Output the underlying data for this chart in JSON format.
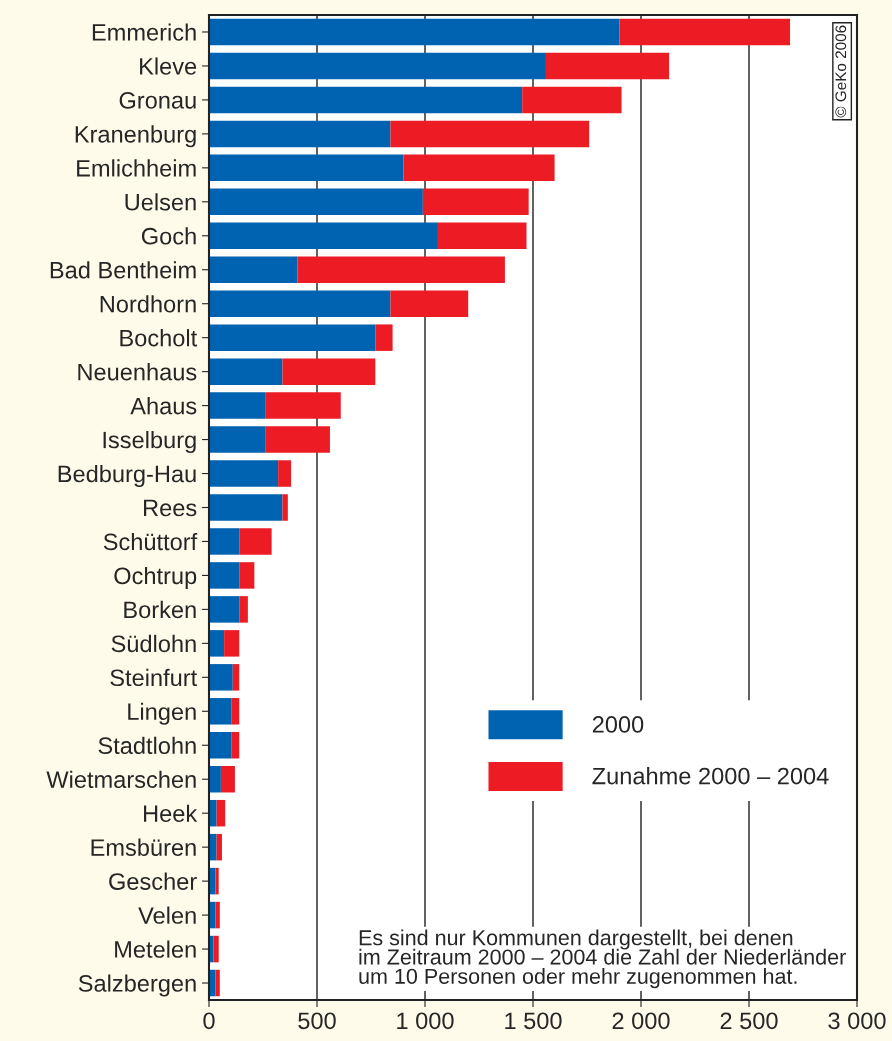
{
  "chart_data": {
    "type": "bar",
    "orientation": "horizontal",
    "stacked": true,
    "categories": [
      "Emmerich",
      "Kleve",
      "Gronau",
      "Kranenburg",
      "Emlichheim",
      "Uelsen",
      "Goch",
      "Bad Bentheim",
      "Nordhorn",
      "Bocholt",
      "Neuenhaus",
      "Ahaus",
      "Isselburg",
      "Bedburg-Hau",
      "Rees",
      "Schüttorf",
      "Ochtrup",
      "Borken",
      "Südlohn",
      "Steinfurt",
      "Lingen",
      "Stadtlohn",
      "Wietmarschen",
      "Heek",
      "Emsbüren",
      "Gescher",
      "Velen",
      "Metelen",
      "Salzbergen"
    ],
    "series": [
      {
        "name": "2000",
        "color": "#0063b1",
        "values": [
          1900,
          1560,
          1450,
          840,
          900,
          990,
          1060,
          410,
          840,
          770,
          340,
          260,
          260,
          320,
          340,
          140,
          140,
          140,
          70,
          110,
          105,
          105,
          55,
          35,
          35,
          30,
          30,
          20,
          30
        ]
      },
      {
        "name": "Zunahme 2000 – 2004",
        "color": "#ed1c24",
        "values": [
          790,
          570,
          460,
          920,
          700,
          490,
          410,
          960,
          360,
          80,
          430,
          350,
          300,
          60,
          25,
          150,
          70,
          40,
          70,
          30,
          35,
          35,
          65,
          40,
          25,
          15,
          20,
          25,
          20
        ]
      }
    ],
    "xlim": [
      0,
      3000
    ],
    "xticks": [
      0,
      500,
      {
        "value": 1000,
        "label": "1 000"
      },
      {
        "value": 1500,
        "label": "1 500"
      },
      {
        "value": 2000,
        "label": "2 000"
      },
      {
        "value": 2500,
        "label": "2 500"
      },
      {
        "value": 3000,
        "label": "3 000"
      }
    ],
    "grid": "x",
    "legend": "lower right",
    "annotations": [
      "Es sind nur Kommunen dargestellt, bei denen\nim Zeitraum 2000 – 2004 die Zahl der Niederländer\num 10 Personen oder mehr zugenommen hat.",
      "© GeKo 2006"
    ]
  }
}
